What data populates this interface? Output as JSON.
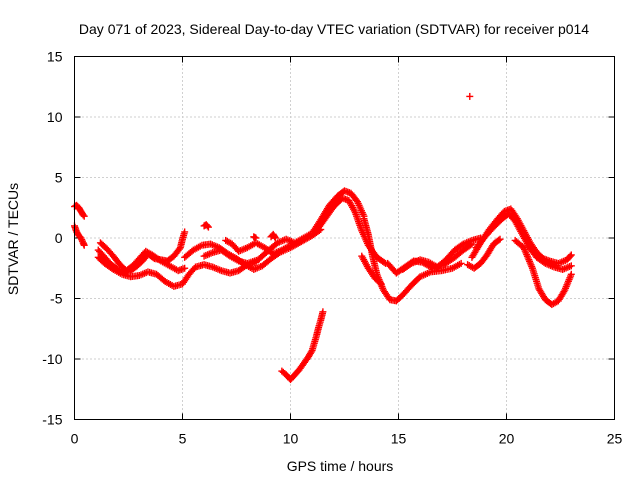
{
  "chart_data": {
    "type": "scatter",
    "title": "Day 071 of 2023, Sidereal Day-to-day VTEC variation (SDTVAR) for receiver p014",
    "xlabel": "GPS time / hours",
    "ylabel": "SDTVAR / TECUs",
    "xlim": [
      0,
      25
    ],
    "ylim": [
      -15,
      15
    ],
    "xticks": [
      "0",
      "5",
      "10",
      "15",
      "20",
      "25"
    ],
    "yticks": [
      "15",
      "10",
      "5",
      "0",
      "-5",
      "-10",
      "-15"
    ],
    "grid": true,
    "marker": "plus",
    "marker_color": "#ff0000",
    "series": [
      {
        "name": "start_upper",
        "points": [
          [
            0.0,
            2.6
          ],
          [
            0.1,
            2.7
          ],
          [
            0.2,
            2.5
          ],
          [
            0.3,
            2.2
          ],
          [
            0.4,
            1.9
          ],
          [
            0.45,
            1.8
          ]
        ]
      },
      {
        "name": "start_lower",
        "points": [
          [
            0.0,
            1.0
          ],
          [
            0.1,
            0.5
          ],
          [
            0.2,
            0.2
          ],
          [
            0.3,
            0.0
          ],
          [
            0.4,
            -0.4
          ],
          [
            0.45,
            -0.6
          ]
        ]
      },
      {
        "name": "track_a",
        "points": [
          [
            1.1,
            -1.0
          ],
          [
            1.4,
            -1.6
          ],
          [
            1.7,
            -2.2
          ],
          [
            2.0,
            -2.6
          ],
          [
            2.3,
            -2.9
          ],
          [
            2.6,
            -2.7
          ],
          [
            2.9,
            -2.3
          ],
          [
            3.2,
            -1.8
          ],
          [
            3.4,
            -1.3
          ],
          [
            3.7,
            -1.7
          ],
          [
            4.0,
            -1.8
          ],
          [
            4.3,
            -1.9
          ],
          [
            4.6,
            -1.5
          ],
          [
            4.9,
            -0.8
          ],
          [
            5.0,
            -0.1
          ],
          [
            5.1,
            0.5
          ]
        ]
      },
      {
        "name": "track_b",
        "points": [
          [
            1.1,
            -1.6
          ],
          [
            1.4,
            -2.1
          ],
          [
            1.8,
            -2.6
          ],
          [
            2.2,
            -3.0
          ],
          [
            2.6,
            -3.2
          ],
          [
            3.0,
            -3.1
          ],
          [
            3.4,
            -2.8
          ],
          [
            3.8,
            -3.0
          ],
          [
            4.2,
            -3.6
          ],
          [
            4.6,
            -4.0
          ],
          [
            5.0,
            -3.8
          ],
          [
            5.3,
            -3.0
          ],
          [
            5.6,
            -2.4
          ],
          [
            6.0,
            -2.2
          ],
          [
            6.4,
            -2.4
          ],
          [
            6.8,
            -2.7
          ],
          [
            7.2,
            -2.9
          ],
          [
            7.6,
            -2.7
          ],
          [
            8.0,
            -2.2
          ],
          [
            8.4,
            -2.0
          ]
        ]
      },
      {
        "name": "track_c",
        "points": [
          [
            1.2,
            -0.4
          ],
          [
            1.5,
            -0.9
          ],
          [
            1.8,
            -1.5
          ],
          [
            2.1,
            -2.2
          ],
          [
            2.4,
            -2.7
          ],
          [
            2.7,
            -2.3
          ],
          [
            3.0,
            -1.7
          ],
          [
            3.3,
            -1.1
          ],
          [
            3.6,
            -1.4
          ],
          [
            4.0,
            -1.9
          ],
          [
            4.4,
            -2.3
          ],
          [
            4.8,
            -2.7
          ],
          [
            5.1,
            -2.5
          ]
        ]
      },
      {
        "name": "track_d",
        "points": [
          [
            5.1,
            -1.6
          ],
          [
            5.5,
            -1.0
          ],
          [
            5.9,
            -0.6
          ],
          [
            6.3,
            -0.5
          ],
          [
            6.7,
            -0.8
          ],
          [
            7.1,
            -1.3
          ],
          [
            7.5,
            -1.7
          ],
          [
            7.9,
            -2.2
          ],
          [
            8.3,
            -2.6
          ],
          [
            8.7,
            -2.3
          ],
          [
            9.1,
            -1.7
          ],
          [
            9.5,
            -1.2
          ],
          [
            10.0,
            -0.8
          ],
          [
            10.5,
            -0.3
          ],
          [
            11.0,
            0.2
          ],
          [
            11.4,
            0.7
          ]
        ]
      },
      {
        "name": "track_e",
        "points": [
          [
            6.0,
            -1.5
          ],
          [
            6.4,
            -1.2
          ],
          [
            6.8,
            -1.0
          ],
          [
            7.2,
            -1.5
          ],
          [
            7.6,
            -1.9
          ],
          [
            8.0,
            -2.1
          ],
          [
            8.5,
            -1.8
          ],
          [
            9.0,
            -1.0
          ],
          [
            9.4,
            -0.4
          ],
          [
            9.8,
            -0.1
          ],
          [
            10.2,
            -0.4
          ],
          [
            10.6,
            0.0
          ],
          [
            11.0,
            0.4
          ]
        ]
      },
      {
        "name": "track_f",
        "points": [
          [
            7.0,
            -0.2
          ],
          [
            7.3,
            -0.5
          ],
          [
            7.6,
            -1.1
          ],
          [
            8.0,
            -0.8
          ],
          [
            8.4,
            -0.4
          ],
          [
            8.8,
            -0.8
          ],
          [
            9.2,
            -1.3
          ],
          [
            9.6,
            -1.0
          ],
          [
            10.0,
            -0.6
          ]
        ]
      },
      {
        "name": "dot_6",
        "points": [
          [
            6.0,
            1.0
          ],
          [
            6.1,
            1.1
          ],
          [
            6.2,
            0.9
          ]
        ]
      },
      {
        "name": "dot_8",
        "points": [
          [
            8.3,
            0.1
          ],
          [
            8.4,
            0.0
          ]
        ]
      },
      {
        "name": "dot_9",
        "points": [
          [
            9.1,
            0.1
          ],
          [
            9.2,
            0.3
          ],
          [
            9.3,
            0.0
          ]
        ]
      },
      {
        "name": "peak_high",
        "points": [
          [
            11.0,
            0.4
          ],
          [
            11.4,
            1.5
          ],
          [
            11.8,
            2.7
          ],
          [
            12.2,
            3.5
          ],
          [
            12.5,
            3.9
          ],
          [
            12.8,
            3.7
          ],
          [
            13.1,
            3.0
          ],
          [
            13.4,
            1.8
          ]
        ]
      },
      {
        "name": "peak_mid",
        "points": [
          [
            11.2,
            0.6
          ],
          [
            11.6,
            1.6
          ],
          [
            12.0,
            2.6
          ],
          [
            12.4,
            3.3
          ],
          [
            12.7,
            3.1
          ],
          [
            13.0,
            2.1
          ],
          [
            13.3,
            0.6
          ],
          [
            13.6,
            -0.6
          ],
          [
            14.0,
            -1.6
          ],
          [
            14.4,
            -2.1
          ]
        ]
      },
      {
        "name": "descent_low",
        "points": [
          [
            13.4,
            1.6
          ],
          [
            13.6,
            0.3
          ],
          [
            13.8,
            -1.5
          ],
          [
            14.0,
            -3.0
          ],
          [
            14.3,
            -4.3
          ],
          [
            14.6,
            -5.1
          ],
          [
            14.9,
            -5.2
          ],
          [
            15.2,
            -4.7
          ],
          [
            15.6,
            -3.9
          ],
          [
            16.0,
            -3.2
          ],
          [
            16.5,
            -2.8
          ],
          [
            17.0,
            -2.7
          ],
          [
            17.5,
            -2.5
          ],
          [
            17.9,
            -2.1
          ]
        ]
      },
      {
        "name": "descent_side",
        "points": [
          [
            13.3,
            -1.5
          ],
          [
            13.6,
            -2.5
          ],
          [
            13.9,
            -3.3
          ],
          [
            14.2,
            -3.8
          ]
        ]
      },
      {
        "name": "valley_upper",
        "points": [
          [
            14.5,
            -2.1
          ],
          [
            14.9,
            -2.9
          ],
          [
            15.3,
            -2.4
          ],
          [
            15.7,
            -1.9
          ],
          [
            16.1,
            -2.0
          ],
          [
            16.6,
            -2.5
          ],
          [
            17.1,
            -2.2
          ],
          [
            17.6,
            -1.6
          ],
          [
            18.0,
            -1.0
          ],
          [
            18.4,
            -0.5
          ]
        ]
      },
      {
        "name": "valley_mid",
        "points": [
          [
            15.2,
            -2.6
          ],
          [
            15.6,
            -2.1
          ],
          [
            16.0,
            -1.8
          ],
          [
            16.4,
            -2.0
          ],
          [
            16.8,
            -2.4
          ],
          [
            17.2,
            -1.8
          ],
          [
            17.6,
            -1.0
          ],
          [
            18.0,
            -0.5
          ],
          [
            18.4,
            -0.2
          ],
          [
            18.8,
            0.0
          ]
        ]
      },
      {
        "name": "rise_20",
        "points": [
          [
            18.4,
            -1.6
          ],
          [
            18.8,
            -0.4
          ],
          [
            19.2,
            0.7
          ],
          [
            19.6,
            1.6
          ],
          [
            19.9,
            2.2
          ],
          [
            20.2,
            2.4
          ],
          [
            20.5,
            1.6
          ],
          [
            20.8,
            0.6
          ],
          [
            21.1,
            -0.4
          ],
          [
            21.4,
            -1.2
          ],
          [
            21.7,
            -1.7
          ],
          [
            22.0,
            -1.9
          ],
          [
            22.4,
            -2.1
          ],
          [
            22.8,
            -1.8
          ],
          [
            23.0,
            -1.4
          ]
        ]
      },
      {
        "name": "rise_20_b",
        "points": [
          [
            18.6,
            -0.8
          ],
          [
            19.0,
            0.1
          ],
          [
            19.4,
            0.9
          ],
          [
            19.8,
            1.6
          ],
          [
            20.1,
            2.0
          ],
          [
            20.4,
            1.4
          ],
          [
            20.7,
            0.4
          ],
          [
            21.0,
            -0.6
          ],
          [
            21.4,
            -1.6
          ],
          [
            21.8,
            -2.1
          ],
          [
            22.2,
            -2.4
          ],
          [
            22.6,
            -2.6
          ],
          [
            23.0,
            -2.3
          ]
        ]
      },
      {
        "name": "dip_19",
        "points": [
          [
            18.2,
            -2.2
          ],
          [
            18.5,
            -2.5
          ],
          [
            18.8,
            -2.1
          ],
          [
            19.1,
            -1.4
          ],
          [
            19.4,
            -0.5
          ],
          [
            19.7,
            -0.1
          ]
        ]
      },
      {
        "name": "dip_22",
        "points": [
          [
            20.4,
            -0.2
          ],
          [
            20.8,
            -0.8
          ],
          [
            21.2,
            -2.5
          ],
          [
            21.5,
            -4.2
          ],
          [
            21.8,
            -5.1
          ],
          [
            22.1,
            -5.5
          ],
          [
            22.4,
            -5.2
          ],
          [
            22.7,
            -4.3
          ],
          [
            23.0,
            -3.0
          ]
        ]
      },
      {
        "name": "lower_branch",
        "points": [
          [
            9.6,
            -11.0
          ],
          [
            9.8,
            -11.3
          ],
          [
            10.0,
            -11.7
          ],
          [
            10.2,
            -11.3
          ],
          [
            10.4,
            -10.9
          ],
          [
            10.6,
            -10.4
          ],
          [
            10.8,
            -9.9
          ],
          [
            11.0,
            -9.3
          ],
          [
            11.1,
            -8.7
          ],
          [
            11.2,
            -8.1
          ],
          [
            11.3,
            -7.4
          ],
          [
            11.4,
            -6.8
          ],
          [
            11.5,
            -6.1
          ]
        ]
      },
      {
        "name": "outlier",
        "points": [
          [
            18.3,
            11.7
          ]
        ]
      }
    ]
  }
}
